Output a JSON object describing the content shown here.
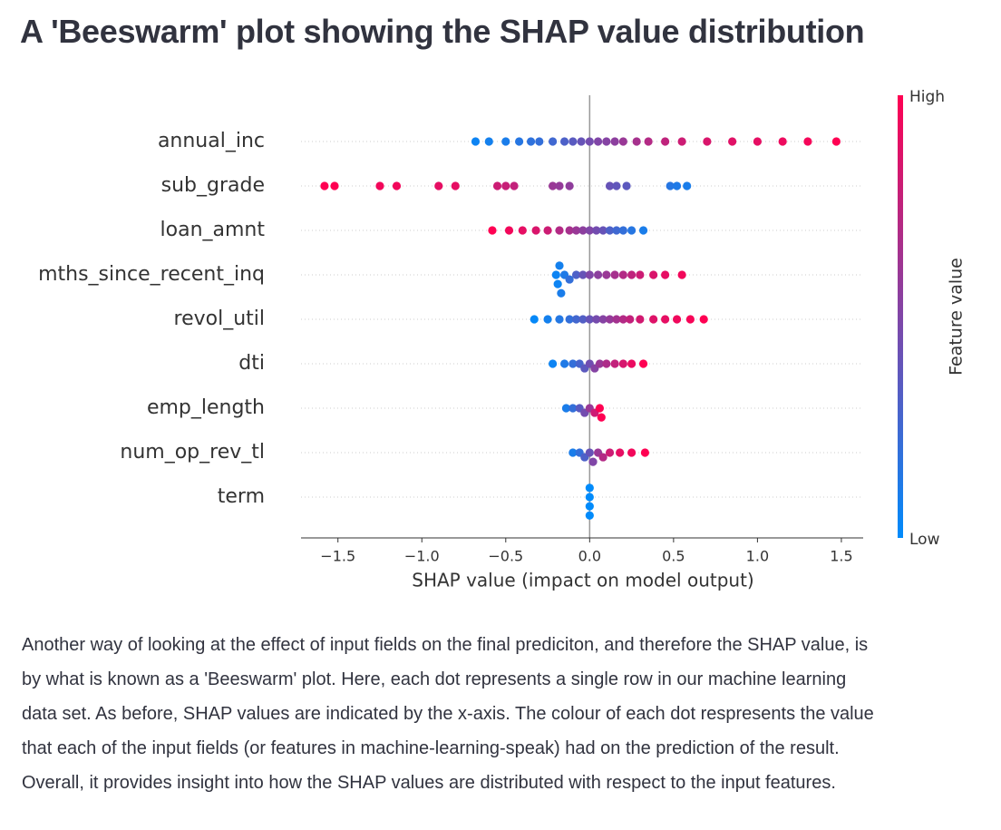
{
  "page": {
    "title": "A 'Beeswarm' plot showing the SHAP value distribution",
    "paragraph": [
      "Another way of looking at the effect of input fields on the final prediciton, and therefore the SHAP value, is",
      "by what is known as a 'Beeswarm' plot. Here, each dot represents a single row in our machine learning",
      "data set. As before, SHAP values are indicated by the x-axis. The colour of each dot respresents the value",
      "that each of the input fields (or features in machine-learning-speak) had on the prediction of the result.",
      "Overall, it provides insight into how the SHAP values are distributed with respect to the input features."
    ]
  },
  "chart_data": {
    "type": "beeswarm",
    "xlabel": "SHAP value (impact on model output)",
    "xlim": [
      -1.72,
      1.63
    ],
    "xticks": [
      {
        "value": -1.5,
        "label": "−1.5"
      },
      {
        "value": -1.0,
        "label": "−1.0"
      },
      {
        "value": -0.5,
        "label": "−0.5"
      },
      {
        "value": 0,
        "label": "0.0"
      },
      0.5,
      {
        "value": 1.0,
        "label": "1.0"
      },
      1.5
    ],
    "colorbar": {
      "label": "Feature value",
      "high": "High",
      "low": "Low",
      "low_color": "#008bfb",
      "high_color": "#ff0052"
    },
    "features": [
      {
        "name": "annual_inc",
        "shap": [
          -0.68,
          -0.6,
          -0.5,
          -0.42,
          -0.35,
          -0.3,
          -0.22,
          -0.15,
          -0.1,
          -0.05,
          0,
          0.05,
          0.1,
          0.15,
          0.2,
          0.28,
          0.35,
          0.45,
          0.55,
          0.7,
          0.85,
          1.0,
          1.15,
          1.3,
          1.47
        ],
        "feature_value": [
          0.05,
          0.08,
          0.1,
          0.15,
          0.18,
          0.2,
          0.25,
          0.3,
          0.35,
          0.4,
          0.45,
          0.5,
          0.52,
          0.55,
          0.6,
          0.65,
          0.7,
          0.75,
          0.8,
          0.85,
          0.88,
          0.9,
          0.93,
          0.96,
          1.0
        ]
      },
      {
        "name": "sub_grade",
        "shap": [
          -1.58,
          -1.52,
          -1.25,
          -1.15,
          -0.9,
          -0.8,
          -0.55,
          -0.5,
          -0.45,
          -0.22,
          -0.18,
          -0.12,
          0.12,
          0.16,
          0.22,
          0.48,
          0.52,
          0.58
        ],
        "feature_value": [
          1,
          1,
          0.95,
          0.95,
          0.9,
          0.9,
          0.8,
          0.78,
          0.76,
          0.6,
          0.58,
          0.56,
          0.4,
          0.38,
          0.36,
          0.15,
          0.12,
          0.1
        ]
      },
      {
        "name": "loan_amnt",
        "shap": [
          -0.58,
          -0.48,
          -0.4,
          -0.32,
          -0.25,
          -0.18,
          -0.12,
          -0.08,
          -0.04,
          0,
          0.04,
          0.08,
          0.12,
          0.16,
          0.2,
          0.25,
          0.32
        ],
        "feature_value": [
          1,
          0.95,
          0.9,
          0.85,
          0.8,
          0.7,
          0.65,
          0.6,
          0.55,
          0.5,
          0.45,
          0.4,
          0.3,
          0.25,
          0.2,
          0.15,
          0.1
        ]
      },
      {
        "name": "mths_since_recent_inq",
        "shap": [
          -0.2,
          -0.19,
          -0.18,
          -0.17,
          -0.15,
          -0.12,
          -0.08,
          -0.04,
          0,
          0.05,
          0.1,
          0.15,
          0.2,
          0.25,
          0.3,
          0.38,
          0.45,
          0.55
        ],
        "feature_value": [
          0.05,
          0.05,
          0.08,
          0.1,
          0.12,
          0.2,
          0.3,
          0.4,
          0.5,
          0.55,
          0.6,
          0.65,
          0.7,
          0.75,
          0.8,
          0.85,
          0.9,
          0.95
        ]
      },
      {
        "name": "revol_util",
        "shap": [
          -0.33,
          -0.25,
          -0.18,
          -0.12,
          -0.08,
          -0.04,
          0,
          0.04,
          0.08,
          0.12,
          0.16,
          0.2,
          0.24,
          0.3,
          0.38,
          0.45,
          0.52,
          0.6,
          0.68
        ],
        "feature_value": [
          0.02,
          0.08,
          0.14,
          0.2,
          0.26,
          0.32,
          0.4,
          0.46,
          0.52,
          0.58,
          0.64,
          0.7,
          0.76,
          0.82,
          0.87,
          0.9,
          0.94,
          0.97,
          1
        ]
      },
      {
        "name": "dti",
        "shap": [
          -0.22,
          -0.15,
          -0.1,
          -0.06,
          -0.03,
          0,
          0.03,
          0.06,
          0.1,
          0.15,
          0.2,
          0.25,
          0.32
        ],
        "feature_value": [
          0.05,
          0.12,
          0.2,
          0.28,
          0.36,
          0.44,
          0.52,
          0.6,
          0.68,
          0.76,
          0.84,
          0.92,
          1
        ]
      },
      {
        "name": "emp_length",
        "shap": [
          -0.14,
          -0.1,
          -0.06,
          -0.03,
          0,
          0.03,
          0.06,
          0.07
        ],
        "feature_value": [
          0.1,
          0.2,
          0.35,
          0.45,
          0.6,
          0.8,
          1,
          1
        ]
      },
      {
        "name": "num_op_rev_tl",
        "shap": [
          -0.1,
          -0.06,
          -0.03,
          0,
          0.02,
          0.05,
          0.08,
          0.12,
          0.18,
          0.25,
          0.33
        ],
        "feature_value": [
          0.1,
          0.2,
          0.3,
          0.4,
          0.5,
          0.6,
          0.7,
          0.8,
          0.9,
          0.95,
          1
        ]
      },
      {
        "name": "term",
        "shap": [
          0,
          0,
          0,
          0
        ],
        "feature_value": [
          0,
          0,
          0,
          0
        ]
      }
    ]
  }
}
